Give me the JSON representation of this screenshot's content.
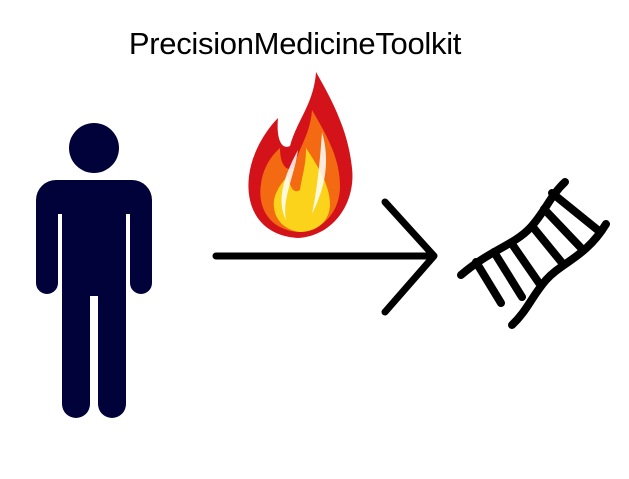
{
  "title": "PrecisionMedicineToolkit",
  "icons": {
    "person": "person-icon",
    "flame": "flame-icon",
    "arrow": "arrow-right-icon",
    "dna": "dna-icon"
  },
  "colors": {
    "person": "#02023a",
    "flame_outer": "#d3121a",
    "flame_mid": "#f36a12",
    "flame_inner": "#fbd31a",
    "stroke": "#000000"
  }
}
